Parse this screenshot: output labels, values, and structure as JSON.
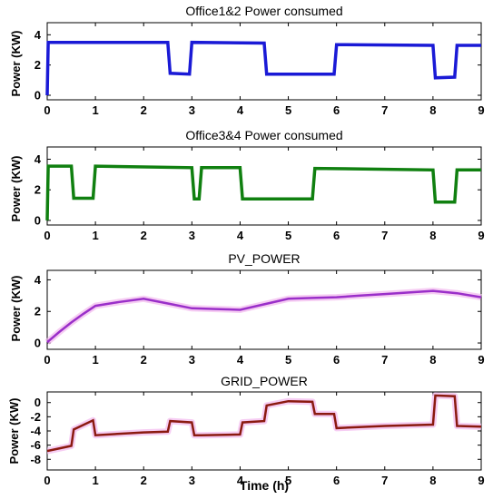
{
  "chart_data": [
    {
      "type": "line",
      "title": "Office1&2 Power consumed",
      "xlabel": "",
      "ylabel": "Power (KW)",
      "xlim": [
        0,
        9
      ],
      "ylim": [
        -0.3,
        4.8
      ],
      "xticks": [
        0,
        1,
        2,
        3,
        4,
        5,
        6,
        7,
        8,
        9
      ],
      "yticks": [
        0,
        2,
        4
      ],
      "grid": false,
      "series": [
        {
          "color": "#1a1ad6",
          "x": [
            0,
            0.02,
            2.5,
            2.55,
            2.95,
            3.0,
            4.5,
            4.55,
            5.95,
            6.0,
            8.0,
            8.05,
            8.45,
            8.5,
            9
          ],
          "y": [
            0,
            3.5,
            3.5,
            1.45,
            1.4,
            3.5,
            3.45,
            1.4,
            1.4,
            3.35,
            3.3,
            1.15,
            1.2,
            3.3,
            3.3
          ]
        }
      ]
    },
    {
      "type": "line",
      "title": "Office3&4 Power consumed",
      "xlabel": "",
      "ylabel": "Power (KW)",
      "xlim": [
        0,
        9
      ],
      "ylim": [
        -0.3,
        4.8
      ],
      "xticks": [
        0,
        1,
        2,
        3,
        4,
        5,
        6,
        7,
        8,
        9
      ],
      "yticks": [
        0,
        2,
        4
      ],
      "grid": false,
      "series": [
        {
          "color": "#108010",
          "x": [
            0,
            0.02,
            0.5,
            0.55,
            0.95,
            1.0,
            3.0,
            3.05,
            3.15,
            3.2,
            4.0,
            4.05,
            5.5,
            5.55,
            8.0,
            8.05,
            8.45,
            8.5,
            9
          ],
          "y": [
            0,
            3.55,
            3.55,
            1.45,
            1.45,
            3.55,
            3.45,
            1.4,
            1.4,
            3.45,
            3.45,
            1.4,
            1.4,
            3.4,
            3.3,
            1.2,
            1.2,
            3.3,
            3.3
          ]
        }
      ]
    },
    {
      "type": "line",
      "title": "PV_POWER",
      "xlabel": "",
      "ylabel": "Power (KW)",
      "xlim": [
        0,
        9
      ],
      "ylim": [
        -0.4,
        4.6
      ],
      "xticks": [
        0,
        1,
        2,
        3,
        4,
        5,
        6,
        7,
        8,
        9
      ],
      "yticks": [
        0,
        2,
        4
      ],
      "grid": false,
      "series": [
        {
          "color": "#9a2fc9",
          "x": [
            0,
            0.25,
            0.5,
            0.75,
            1.0,
            1.5,
            2.0,
            2.5,
            3.0,
            3.5,
            4.0,
            4.5,
            5.0,
            5.5,
            6.0,
            6.5,
            7.0,
            7.5,
            8.0,
            8.5,
            9.0
          ],
          "y": [
            0.05,
            0.7,
            1.3,
            1.85,
            2.35,
            2.6,
            2.8,
            2.5,
            2.2,
            2.15,
            2.1,
            2.45,
            2.8,
            2.85,
            2.9,
            3.0,
            3.1,
            3.2,
            3.3,
            3.15,
            2.9
          ]
        }
      ]
    },
    {
      "type": "line",
      "title": "GRID_POWER",
      "xlabel": "Time (h)",
      "ylabel": "Power (KW)",
      "xlim": [
        0,
        9
      ],
      "ylim": [
        -9.5,
        1.5
      ],
      "xticks": [
        0,
        1,
        2,
        3,
        4,
        5,
        6,
        7,
        8,
        9
      ],
      "yticks": [
        0,
        -2,
        -4,
        -6,
        -8
      ],
      "grid": false,
      "series": [
        {
          "color": "#8b1a10",
          "x": [
            0,
            0.02,
            0.5,
            0.55,
            0.95,
            1.0,
            2.0,
            2.5,
            2.55,
            3.0,
            3.05,
            3.15,
            3.2,
            4.0,
            4.05,
            4.5,
            4.55,
            5.0,
            5.5,
            5.55,
            5.95,
            6.0,
            7.0,
            8.0,
            8.05,
            8.45,
            8.5,
            9.0
          ],
          "y": [
            -6.8,
            -6.8,
            -6.1,
            -3.8,
            -2.5,
            -4.6,
            -4.2,
            -4.1,
            -2.6,
            -2.8,
            -4.6,
            -4.6,
            -4.6,
            -4.5,
            -2.8,
            -2.6,
            -0.4,
            0.2,
            0.1,
            -1.6,
            -1.6,
            -3.6,
            -3.3,
            -3.1,
            1.0,
            0.9,
            -3.3,
            -3.4
          ]
        }
      ]
    }
  ]
}
